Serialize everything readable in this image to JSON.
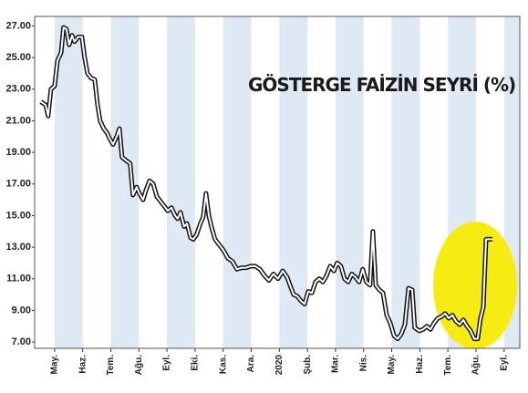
{
  "chart_data": {
    "type": "line",
    "title": "GÖSTERGE FAİZİN SEYRİ (%)",
    "xlim": [
      -0.71,
      16.56
    ],
    "xticks": [
      {
        "value": 0,
        "label": "May."
      },
      {
        "value": 1,
        "label": "Haz."
      },
      {
        "value": 2,
        "label": "Tem."
      },
      {
        "value": 3,
        "label": "Ağu."
      },
      {
        "value": 4,
        "label": "Eyl."
      },
      {
        "value": 5,
        "label": "Eki."
      },
      {
        "value": 6,
        "label": "Kas."
      },
      {
        "value": 7,
        "label": "Ara."
      },
      {
        "value": 8,
        "label": "2020"
      },
      {
        "value": 9,
        "label": "Şub."
      },
      {
        "value": 10,
        "label": "Mar."
      },
      {
        "value": 11,
        "label": "Nis."
      },
      {
        "value": 12,
        "label": "May."
      },
      {
        "value": 13,
        "label": "Haz."
      },
      {
        "value": 14,
        "label": "Tem."
      },
      {
        "value": 15,
        "label": "Ağu."
      },
      {
        "value": 16,
        "label": "Eyl."
      }
    ],
    "ylim": [
      6.6,
      27.6
    ],
    "yticks": [
      {
        "value": 7,
        "label": "7.00"
      },
      {
        "value": 9,
        "label": "9.00"
      },
      {
        "value": 11,
        "label": "11.00"
      },
      {
        "value": 13,
        "label": "13.00"
      },
      {
        "value": 15,
        "label": "15.00"
      },
      {
        "value": 17,
        "label": "17.00"
      },
      {
        "value": 19,
        "label": "19.00"
      },
      {
        "value": 21,
        "label": "21.00"
      },
      {
        "value": 23,
        "label": "23.00"
      },
      {
        "value": 25,
        "label": "25.00"
      },
      {
        "value": 27,
        "label": "27.00"
      }
    ],
    "band_color": "#dfe9f3",
    "series": [
      {
        "color": "#111111",
        "x": [
          -0.49,
          -0.32,
          -0.23,
          -0.13,
          0,
          0.1,
          0.23,
          0.32,
          0.42,
          0.52,
          0.62,
          0.71,
          0.84,
          0.97,
          1.07,
          1.17,
          1.3,
          1.43,
          1.53,
          1.62,
          1.75,
          1.88,
          1.95,
          2.08,
          2.21,
          2.31,
          2.4,
          2.53,
          2.69,
          2.79,
          2.92,
          3.02,
          3.15,
          3.25,
          3.38,
          3.51,
          3.64,
          3.77,
          3.9,
          4.03,
          4.16,
          4.29,
          4.38,
          4.48,
          4.61,
          4.71,
          4.84,
          4.94,
          5.06,
          5.19,
          5.29,
          5.39,
          5.49,
          5.58,
          5.71,
          5.84,
          6.01,
          6.17,
          6.33,
          6.49,
          6.66,
          6.82,
          6.98,
          7.14,
          7.31,
          7.47,
          7.63,
          7.79,
          7.95,
          8.12,
          8.28,
          8.38,
          8.51,
          8.64,
          8.77,
          8.9,
          9.03,
          9.16,
          9.29,
          9.42,
          9.55,
          9.68,
          9.81,
          9.94,
          10.06,
          10.19,
          10.32,
          10.45,
          10.58,
          10.71,
          10.84,
          10.97,
          11.1,
          11.23,
          11.33,
          11.43,
          11.56,
          11.69,
          11.82,
          11.95,
          12.08,
          12.21,
          12.34,
          12.47,
          12.6,
          12.73,
          12.82,
          12.99,
          13.12,
          13.25,
          13.38,
          13.51,
          13.64,
          13.77,
          13.9,
          14.03,
          14.16,
          14.29,
          14.42,
          14.55,
          14.68,
          14.81,
          14.94,
          15.06,
          15.16,
          15.26,
          15.36,
          15.49,
          15.58
        ],
        "values": [
          22.2,
          22.0,
          21.3,
          23.0,
          23.2,
          24.8,
          25.3,
          26.9,
          26.8,
          25.8,
          26.4,
          26.0,
          26.3,
          26.3,
          25.0,
          24.0,
          23.7,
          23.6,
          22.0,
          21.0,
          20.5,
          20.2,
          19.9,
          19.5,
          20.0,
          20.5,
          18.7,
          18.5,
          18.3,
          16.3,
          16.8,
          16.4,
          16.0,
          16.6,
          17.2,
          17.0,
          16.2,
          15.9,
          15.6,
          15.3,
          15.5,
          15.0,
          14.8,
          15.2,
          14.3,
          14.5,
          13.6,
          13.5,
          13.8,
          14.5,
          14.9,
          16.4,
          15.0,
          14.3,
          13.5,
          13.2,
          12.8,
          12.3,
          12.1,
          11.6,
          11.7,
          11.7,
          11.8,
          11.8,
          11.6,
          11.2,
          10.9,
          11.3,
          11.0,
          11.5,
          11.1,
          10.6,
          10.0,
          9.9,
          9.6,
          9.4,
          10.2,
          10.1,
          10.8,
          11.0,
          10.8,
          11.2,
          11.8,
          11.5,
          12.0,
          11.8,
          11.0,
          10.8,
          11.3,
          11.1,
          10.8,
          11.6,
          10.8,
          10.6,
          14.0,
          10.6,
          10.3,
          10.1,
          8.7,
          8.2,
          7.4,
          7.2,
          7.5,
          8.1,
          10.4,
          10.3,
          7.9,
          7.7,
          7.8,
          8.0,
          7.8,
          8.2,
          8.5,
          8.6,
          8.8,
          8.5,
          8.7,
          8.3,
          8.1,
          8.4,
          8.0,
          7.7,
          7.2,
          7.2,
          8.5,
          9.2,
          13.5,
          13.5,
          13.5
        ]
      }
    ]
  }
}
